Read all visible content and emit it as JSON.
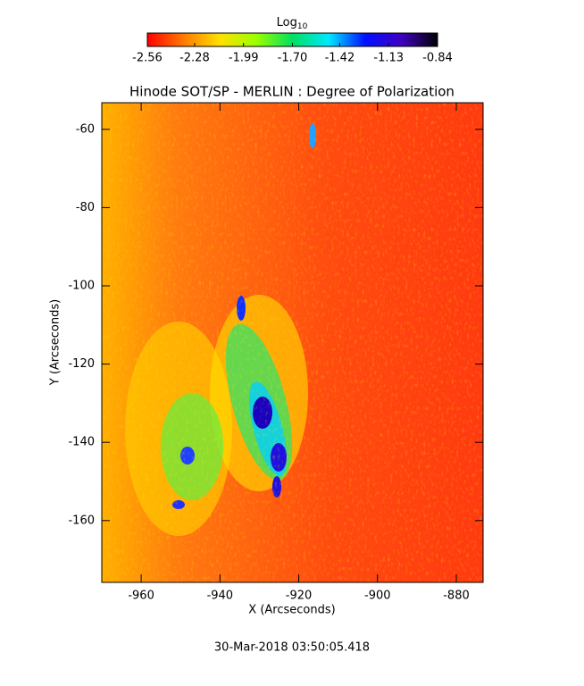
{
  "chart_data": {
    "type": "heatmap",
    "title": "Hinode SOT/SP - MERLIN : Degree of Polarization",
    "xlabel": "X (Arcseconds)",
    "ylabel": "Y (Arcseconds)",
    "date": "30-Mar-2018 03:50:05.418",
    "xlim": [
      -970,
      -873.2
    ],
    "ylim": [
      -175.8,
      -53.2
    ],
    "xticks": [
      -960,
      -940,
      -920,
      -900,
      -880
    ],
    "yticks": [
      -60,
      -80,
      -100,
      -120,
      -140,
      -160
    ],
    "colorbar": {
      "label": "Log",
      "label_sub": "10",
      "clim": [
        -2.56,
        -0.84
      ],
      "ticks": [
        -2.56,
        -2.28,
        -1.99,
        -1.7,
        -1.42,
        -1.13,
        -0.84
      ],
      "colormap": [
        "#ff0000",
        "#ff7a00",
        "#ffe000",
        "#9cff00",
        "#00e060",
        "#00e8ff",
        "#0010ff",
        "#4000c0",
        "#000000"
      ]
    }
  }
}
